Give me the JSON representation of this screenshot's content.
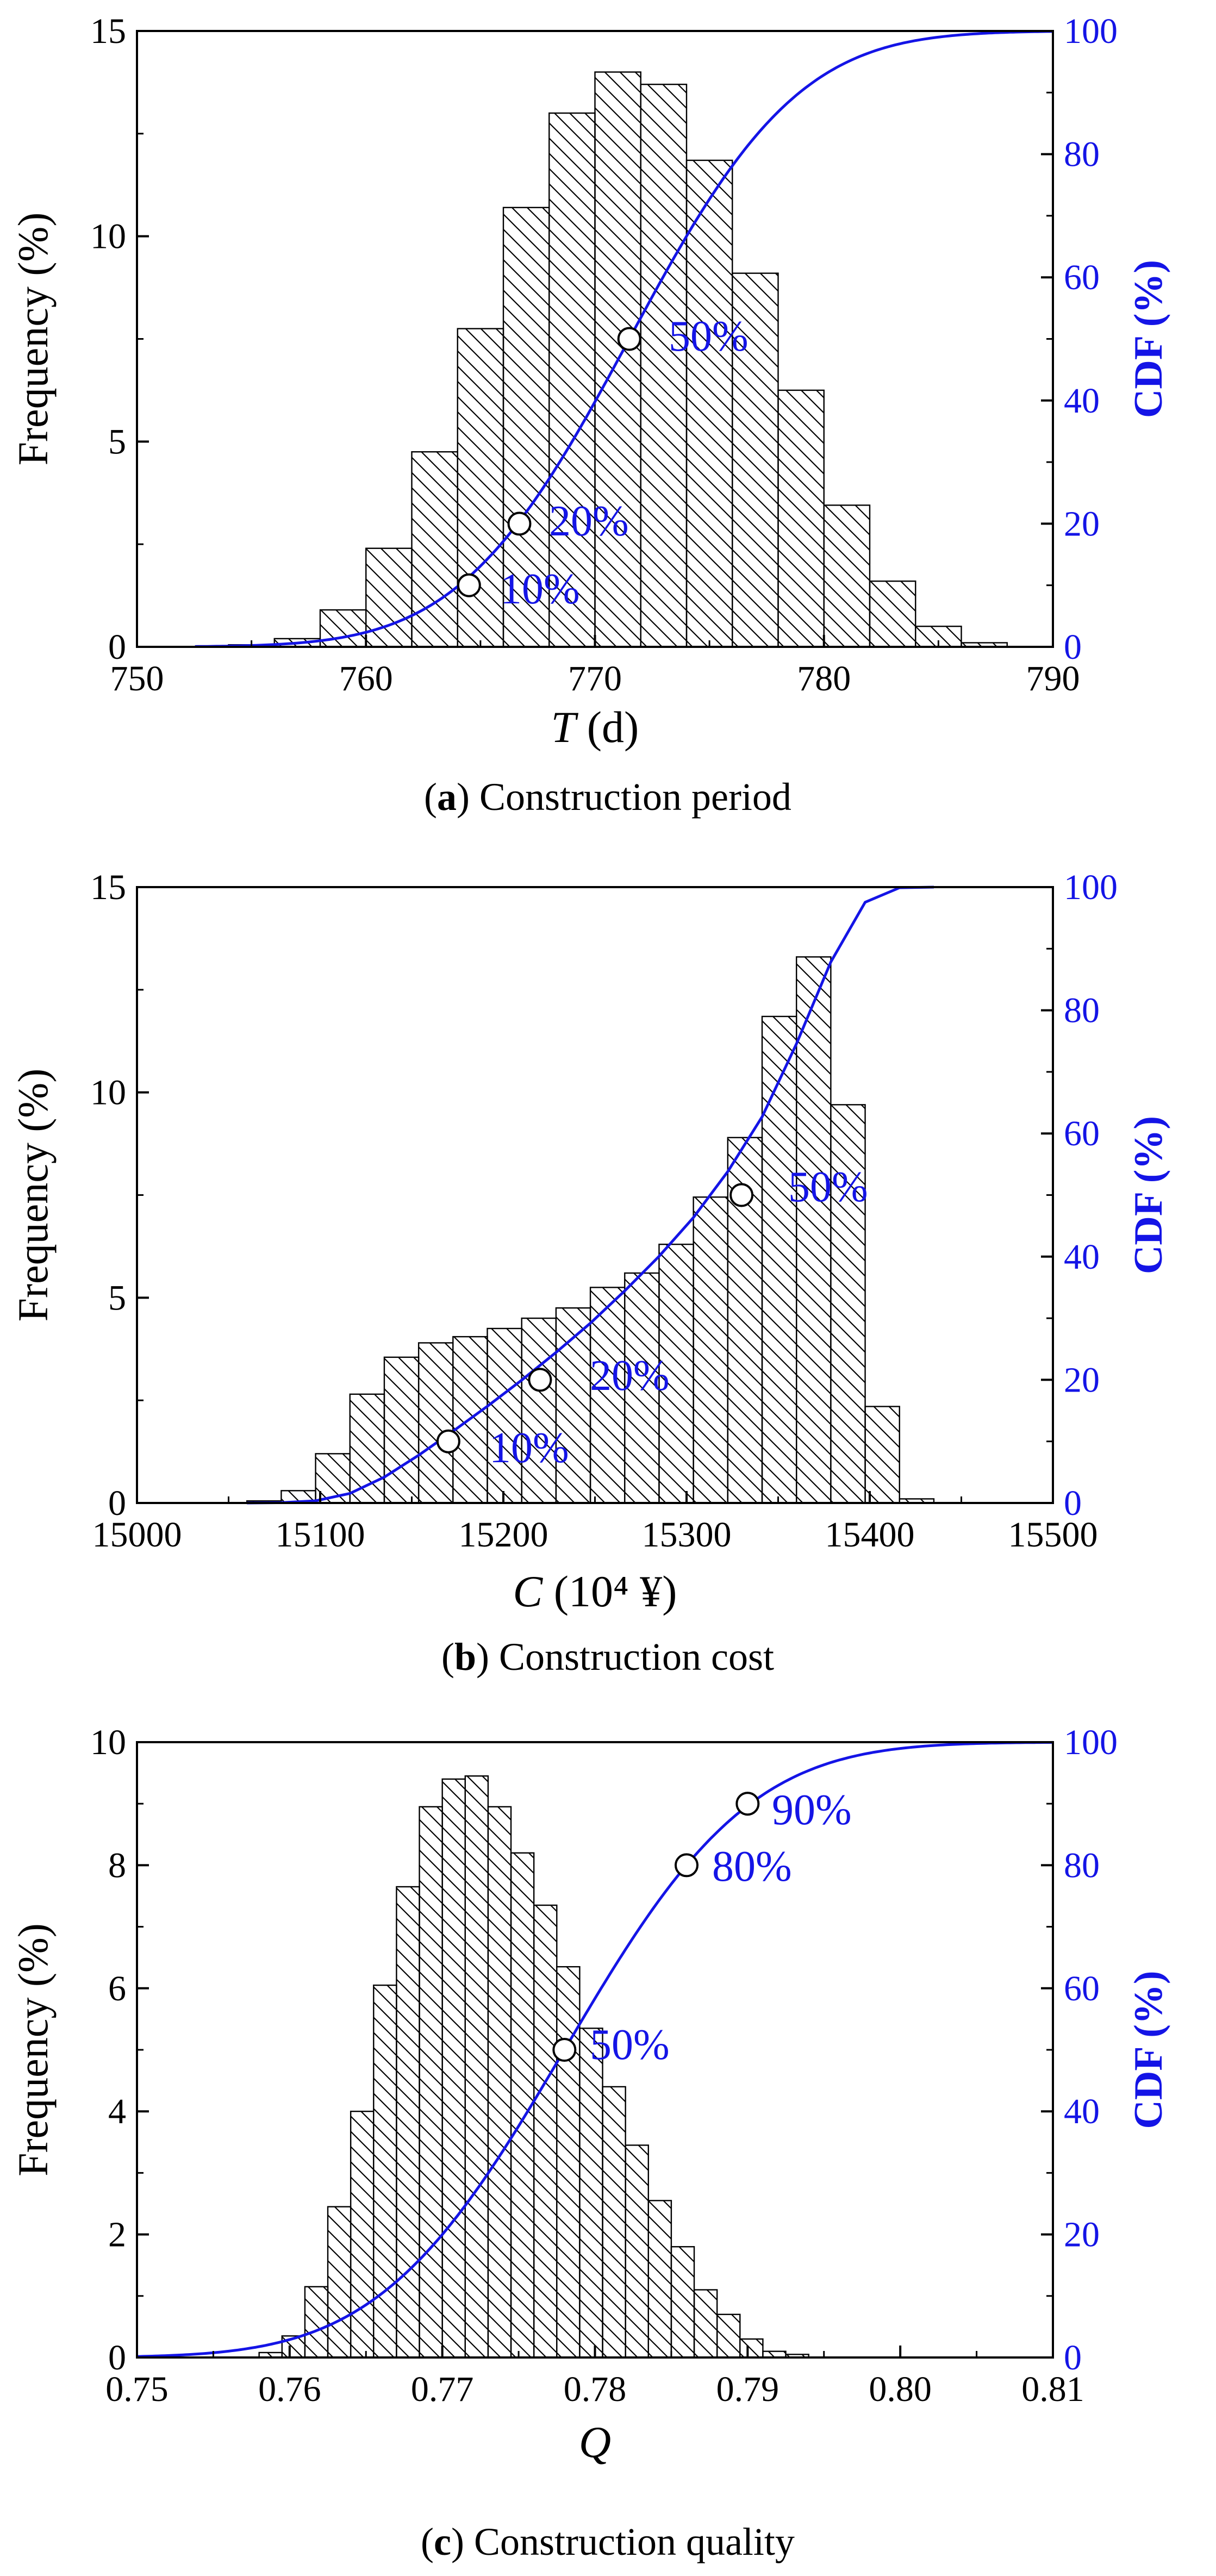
{
  "colors": {
    "cdf": "#1414e6",
    "axis": "#000000",
    "bar_edge": "#000000",
    "hatch": "#000000"
  },
  "chart_data": [
    {
      "id": "a",
      "type": "bar",
      "title_prefix": "(",
      "title_letter": "a",
      "title_suffix": ") Construction period",
      "xlabel_italic": "T",
      "xlabel_rest": " (d)",
      "ylabel": "Frequency (%)",
      "y2label": "CDF (%)",
      "xlim": [
        750,
        790
      ],
      "ylim": [
        0,
        15
      ],
      "y2lim": [
        0,
        100
      ],
      "xticks": [
        750,
        760,
        770,
        780,
        790
      ],
      "xtick_labels": [
        "750",
        "760",
        "770",
        "780",
        "790"
      ],
      "yticks": [
        0,
        5,
        10,
        15
      ],
      "ytick_labels": [
        "0",
        "5",
        "10",
        "15"
      ],
      "y2ticks": [
        0,
        20,
        40,
        60,
        80,
        100
      ],
      "y2tick_labels": [
        "0",
        "20",
        "40",
        "60",
        "80",
        "100"
      ],
      "bin_start": 754,
      "bin_width": 2,
      "values": [
        0.05,
        0.2,
        0.9,
        2.4,
        4.75,
        7.75,
        10.7,
        13.0,
        14.0,
        13.7,
        11.85,
        9.1,
        6.25,
        3.45,
        1.6,
        0.5,
        0.1
      ],
      "cdf": {
        "type": "normal",
        "mean": 771.5,
        "sd": 5.8
      },
      "cdf_points": [
        {
          "x": 764.5,
          "y": 10
        },
        {
          "x": 766.7,
          "y": 20
        },
        {
          "x": 771.5,
          "y": 50
        }
      ],
      "annotations": [
        "10%",
        "20%",
        "50%"
      ]
    },
    {
      "id": "b",
      "type": "bar",
      "title_prefix": "(",
      "title_letter": "b",
      "title_suffix": ") Construction cost",
      "xlabel_italic": "C",
      "xlabel_rest": " (10⁴ ¥)",
      "ylabel": "Frequency (%)",
      "y2label": "CDF (%)",
      "xlim": [
        15000,
        15500
      ],
      "ylim": [
        0,
        15
      ],
      "y2lim": [
        0,
        100
      ],
      "xticks": [
        15000,
        15100,
        15200,
        15300,
        15400,
        15500
      ],
      "xtick_labels": [
        "15000",
        "15100",
        "15200",
        "15300",
        "15400",
        "15500"
      ],
      "yticks": [
        0,
        5,
        10,
        15
      ],
      "ytick_labels": [
        "0",
        "5",
        "10",
        "15"
      ],
      "y2ticks": [
        0,
        20,
        40,
        60,
        80,
        100
      ],
      "y2tick_labels": [
        "0",
        "20",
        "40",
        "60",
        "80",
        "100"
      ],
      "bin_start": 15060,
      "bin_width": 18.75,
      "values": [
        0.05,
        0.3,
        1.2,
        2.65,
        3.55,
        3.9,
        4.05,
        4.25,
        4.5,
        4.75,
        5.25,
        5.6,
        6.3,
        7.45,
        8.9,
        11.85,
        13.3,
        9.7,
        2.35,
        0.1
      ],
      "cdf": {
        "type": "empirical"
      },
      "cdf_points": [
        {
          "x": 15170,
          "y": 10
        },
        {
          "x": 15220,
          "y": 20
        },
        {
          "x": 15330,
          "y": 50
        }
      ],
      "annotations": [
        "10%",
        "20%",
        "50%"
      ]
    },
    {
      "id": "c",
      "type": "bar",
      "title_prefix": "(",
      "title_letter": "c",
      "title_suffix": ") Construction quality",
      "xlabel_italic": "Q",
      "xlabel_rest": "",
      "ylabel": "Frequency (%)",
      "y2label": "CDF (%)",
      "xlim": [
        0.75,
        0.81
      ],
      "ylim": [
        0,
        10
      ],
      "y2lim": [
        0,
        100
      ],
      "xticks": [
        0.75,
        0.76,
        0.77,
        0.78,
        0.79,
        0.8,
        0.81
      ],
      "xtick_labels": [
        "0.75",
        "0.76",
        "0.77",
        "0.78",
        "0.79",
        "0.80",
        "0.81"
      ],
      "yticks": [
        0,
        2,
        4,
        6,
        8,
        10
      ],
      "ytick_labels": [
        "0",
        "2",
        "4",
        "6",
        "8",
        "10"
      ],
      "y2ticks": [
        0,
        20,
        40,
        60,
        80,
        100
      ],
      "y2tick_labels": [
        "0",
        "20",
        "40",
        "60",
        "80",
        "100"
      ],
      "bin_start": 0.758,
      "bin_width": 0.0015,
      "values": [
        0.08,
        0.35,
        1.15,
        2.45,
        4.0,
        6.05,
        7.65,
        8.95,
        9.4,
        9.45,
        8.95,
        8.2,
        7.35,
        6.35,
        5.35,
        4.4,
        3.45,
        2.55,
        1.8,
        1.1,
        0.7,
        0.3,
        0.1,
        0.05
      ],
      "cdf": {
        "type": "normal",
        "mean": 0.778,
        "sd": 0.0095
      },
      "cdf_points": [
        {
          "x": 0.778,
          "y": 50
        },
        {
          "x": 0.786,
          "y": 80
        },
        {
          "x": 0.79,
          "y": 90
        }
      ],
      "annotations": [
        "50%",
        "80%",
        "90%"
      ]
    }
  ]
}
